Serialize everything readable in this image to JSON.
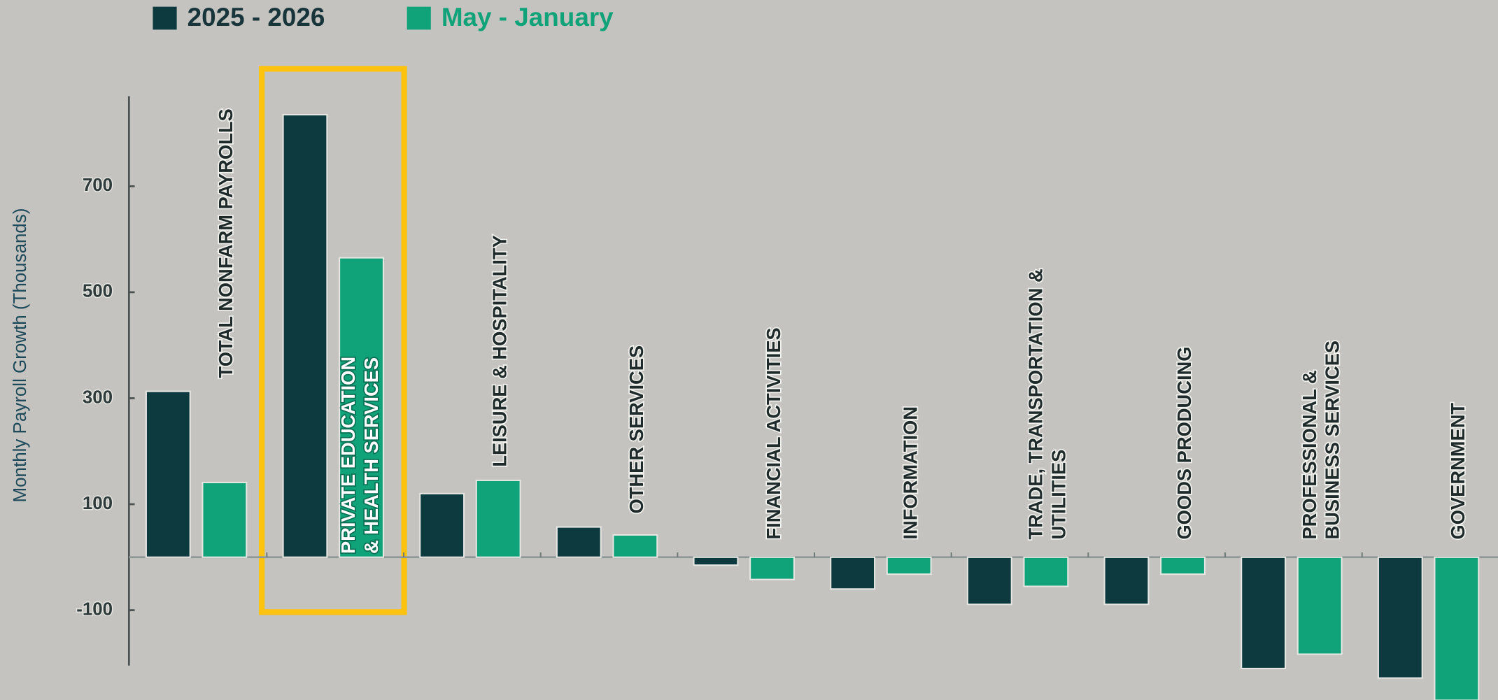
{
  "chart_data": {
    "type": "bar",
    "y_label": "Monthly Payroll Growth (Thousands)",
    "categories": [
      "TOTAL NONFARM PAYROLLS",
      "PRIVATE EDUCATION\n& HEALTH SERVICES",
      "LEISURE & HOSPITALITY",
      "OTHER SERVICES",
      "FINANCIAL ACTIVITIES",
      "INFORMATION",
      "TRADE, TRANSPORTATION &\nUTILITIES",
      "GOODS PRODUCING",
      "PROFESSIONAL &\nBUSINESS SERVICES",
      "GOVERNMENT"
    ],
    "series": [
      {
        "name": "2025 - 2026",
        "color": "#0d3a3f",
        "values": [
          313,
          835,
          120,
          57,
          -15,
          -60,
          -89,
          -89,
          -210,
          -228
        ]
      },
      {
        "name": "May - January",
        "color": "#10a37a",
        "values": [
          141,
          565,
          145,
          42,
          -42,
          -32,
          -55,
          -32,
          -183,
          -270
        ]
      }
    ],
    "ylim": [
      -270,
      870
    ],
    "yticks": [
      700,
      500,
      300,
      100,
      -100
    ],
    "legend": "top-left"
  }
}
